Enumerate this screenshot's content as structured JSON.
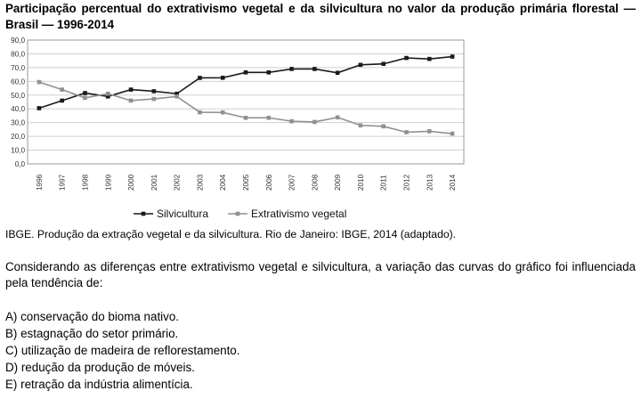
{
  "title": "Participação percentual do extrativismo vegetal e da silvicultura no valor da produção primária florestal — Brasil — 1996-2014",
  "source": "IBGE. Produção da extração vegetal e da silvicultura. Rio de Janeiro: IBGE, 2014 (adaptado).",
  "question": "Considerando as diferenças entre extrativismo vegetal e silvicultura, a variação das curvas do gráfico foi influenciada pela tendência de:",
  "options": [
    "A) conservação do bioma nativo.",
    "B) estagnação do setor primário.",
    "C) utilização de madeira de reflorestamento.",
    "D) redução da produção de móveis.",
    "E) retração da indústria alimentícia."
  ],
  "chart_data": {
    "type": "line",
    "title": "",
    "xlabel": "",
    "ylabel": "",
    "x": [
      "1996",
      "1997",
      "1998",
      "1999",
      "2000",
      "2001",
      "2002",
      "2003",
      "2004",
      "2005",
      "2006",
      "2007",
      "2008",
      "2009",
      "2010",
      "2011",
      "2012",
      "2013",
      "2014"
    ],
    "ylim": [
      0,
      90
    ],
    "yticks": [
      "0,0",
      "10,0",
      "20,0",
      "30,0",
      "40,0",
      "50,0",
      "60,0",
      "70,0",
      "80,0",
      "90,0"
    ],
    "grid": true,
    "legend_position": "bottom-center",
    "series": [
      {
        "name": "Silvicultura",
        "color": "#1a1a1a",
        "marker": "square",
        "values": [
          40.5,
          46.0,
          51.5,
          49.0,
          54.0,
          52.8,
          51.0,
          62.5,
          62.6,
          66.5,
          66.5,
          69.0,
          69.0,
          66.2,
          72.0,
          72.7,
          77.0,
          76.3,
          78.0
        ]
      },
      {
        "name": "Extrativismo vegetal",
        "color": "#909090",
        "marker": "square",
        "values": [
          59.5,
          54.0,
          48.0,
          51.0,
          46.0,
          47.2,
          49.0,
          37.5,
          37.4,
          33.5,
          33.5,
          31.0,
          30.5,
          33.8,
          28.0,
          27.3,
          23.0,
          23.7,
          22.0
        ]
      }
    ]
  }
}
